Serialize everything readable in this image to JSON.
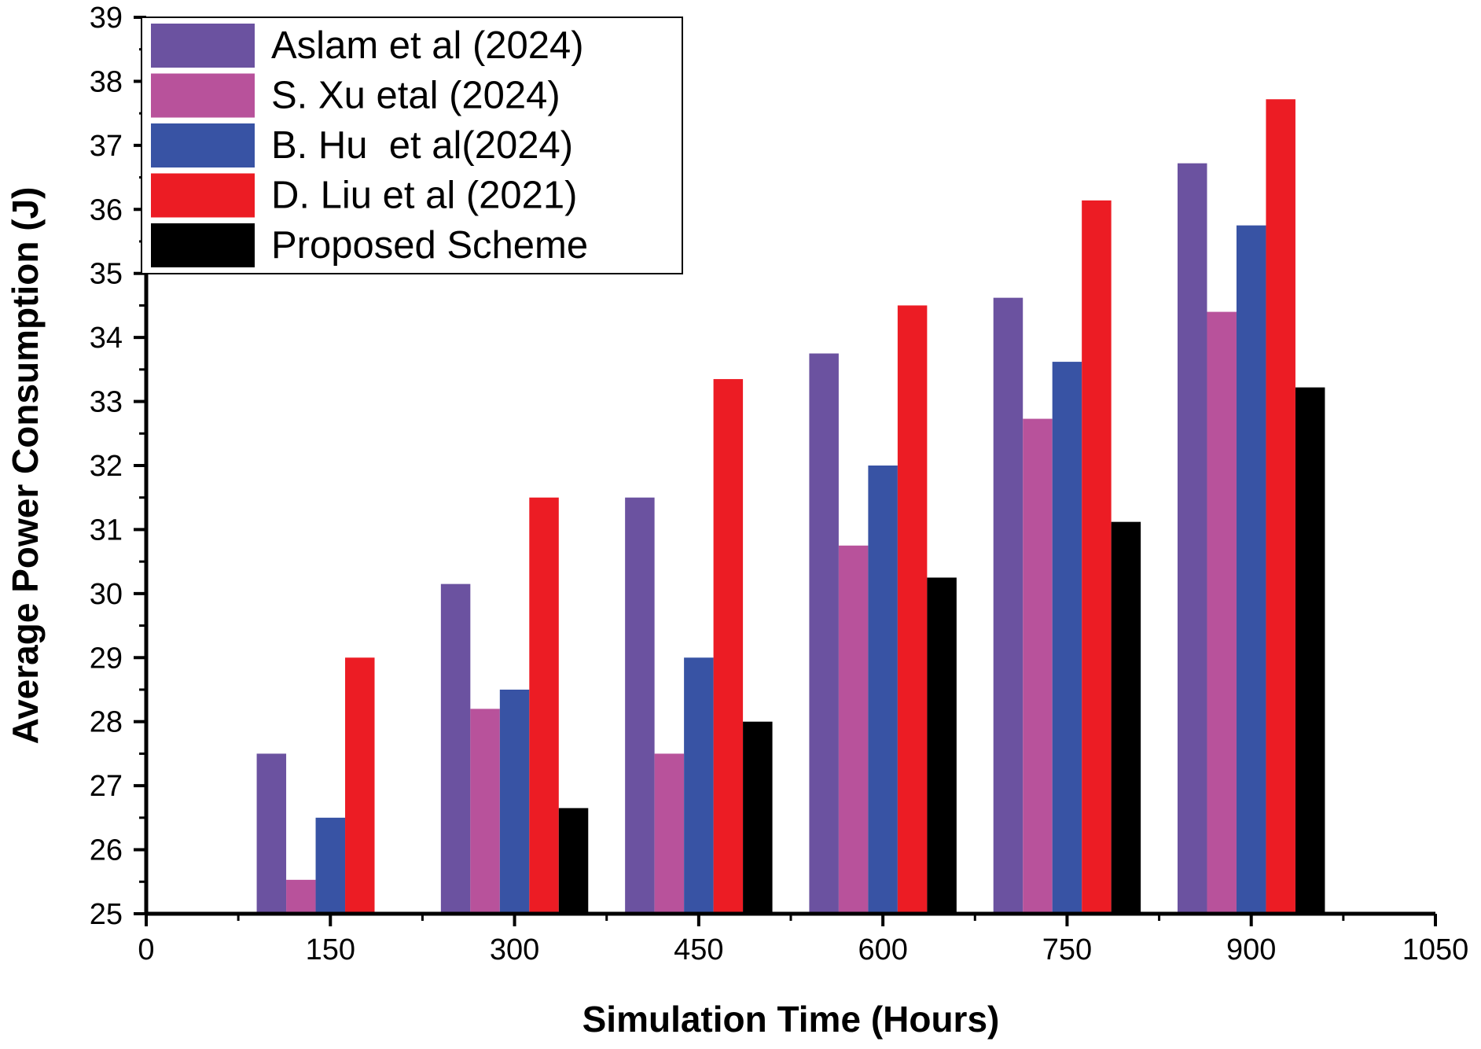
{
  "chart_data": {
    "type": "bar",
    "title": "",
    "xlabel": "Simulation Time (Hours)",
    "ylabel": "Average Power Consumption (J)",
    "categories": [
      150,
      300,
      450,
      600,
      750,
      900
    ],
    "xlim": [
      0,
      1050
    ],
    "ylim": [
      25,
      39
    ],
    "xticks": [
      0,
      150,
      300,
      450,
      600,
      750,
      900,
      1050
    ],
    "yticks": [
      25,
      26,
      27,
      28,
      29,
      30,
      31,
      32,
      33,
      34,
      35,
      36,
      37,
      38,
      39
    ],
    "grid": false,
    "legend_position": "top-left",
    "series": [
      {
        "name": "Aslam et al (2024)",
        "color": "#6b52a0",
        "values": [
          27.5,
          30.15,
          31.5,
          33.75,
          34.62,
          36.72
        ]
      },
      {
        "name": "S. Xu etal (2024)",
        "color": "#b8529b",
        "values": [
          25.53,
          28.2,
          27.5,
          30.75,
          32.73,
          34.4
        ]
      },
      {
        "name": "B. Hu  et al(2024)",
        "color": "#3853a4",
        "values": [
          26.5,
          28.5,
          29.0,
          32.0,
          33.62,
          35.75
        ]
      },
      {
        "name": "D. Liu et al (2021)",
        "color": "#ec1c24",
        "values": [
          29.0,
          31.5,
          33.35,
          34.5,
          36.14,
          37.72
        ]
      },
      {
        "name": "Proposed Scheme",
        "color": "#000000",
        "values": [
          null,
          26.65,
          28.0,
          30.25,
          31.12,
          33.22
        ]
      }
    ]
  }
}
